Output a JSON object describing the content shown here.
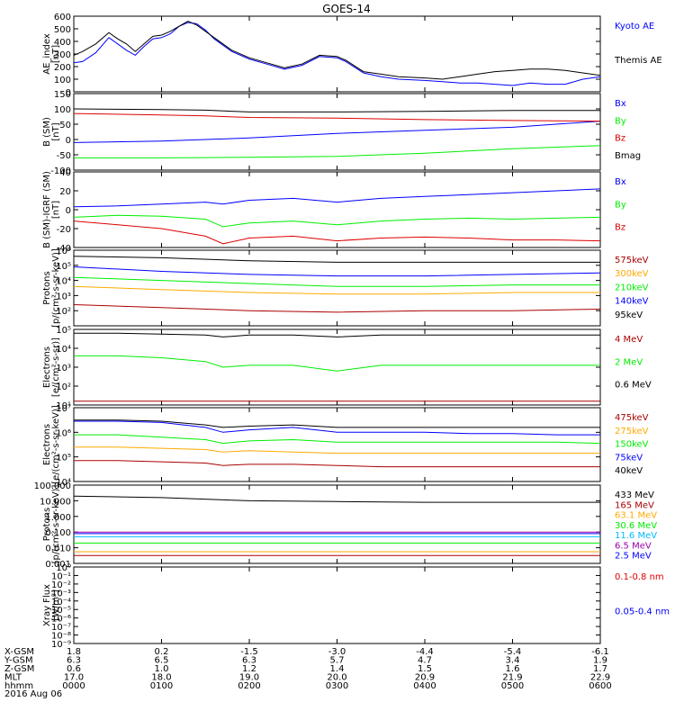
{
  "title": "GOES-14",
  "colors": {
    "black": "#000000",
    "blue": "#0000ff",
    "red": "#dd0000",
    "green": "#00ee00",
    "orange": "#ffaa00",
    "darkred": "#aa0000",
    "cyan": "#00bbff",
    "yellow": "#e8e800",
    "purple": "#9900aa"
  },
  "chart_data": [
    {
      "type": "line",
      "ylabel": "AE_index\n[nT]",
      "ylim": [
        0,
        600
      ],
      "yticks": [
        "0",
        "100",
        "200",
        "300",
        "400",
        "500",
        "600"
      ],
      "tickvals": [
        0,
        100,
        200,
        300,
        400,
        500,
        600
      ],
      "x_hours": [
        0.0,
        0.1,
        0.25,
        0.4,
        0.5,
        0.6,
        0.7,
        0.8,
        0.9,
        1.0,
        1.1,
        1.2,
        1.3,
        1.4,
        1.5,
        1.6,
        1.8,
        2.0,
        2.2,
        2.4,
        2.6,
        2.8,
        3.0,
        3.1,
        3.3,
        3.5,
        3.7,
        4.0,
        4.2,
        4.4,
        4.6,
        4.8,
        5.0,
        5.2,
        5.4,
        5.6,
        5.8,
        6.0
      ],
      "series": [
        {
          "name": "Kyoto AE",
          "color": "blue",
          "values": [
            230,
            240,
            310,
            430,
            380,
            330,
            290,
            360,
            420,
            430,
            460,
            520,
            550,
            540,
            490,
            420,
            320,
            260,
            220,
            180,
            210,
            280,
            270,
            240,
            150,
            120,
            100,
            90,
            80,
            70,
            70,
            60,
            50,
            70,
            60,
            60,
            100,
            120
          ]
        },
        {
          "name": "Themis AE",
          "color": "black",
          "values": [
            290,
            320,
            380,
            470,
            420,
            380,
            320,
            380,
            440,
            450,
            480,
            520,
            560,
            530,
            480,
            430,
            330,
            270,
            230,
            190,
            220,
            290,
            280,
            250,
            160,
            140,
            120,
            110,
            100,
            120,
            140,
            160,
            170,
            180,
            180,
            170,
            150,
            130
          ]
        }
      ]
    },
    {
      "type": "line",
      "ylabel": "B (SM)\n[nT]",
      "ylim": [
        -100,
        150
      ],
      "yticks": [
        "-100",
        "-50",
        "0",
        "50",
        "100",
        "150"
      ],
      "tickvals": [
        -100,
        -50,
        0,
        50,
        100,
        150
      ],
      "x_hours": [
        0,
        1,
        1.5,
        2,
        3,
        4,
        5,
        6
      ],
      "series": [
        {
          "name": "Bx",
          "color": "blue",
          "values": [
            -10,
            -5,
            0,
            5,
            20,
            30,
            40,
            60
          ]
        },
        {
          "name": "By",
          "color": "green",
          "values": [
            -60,
            -60,
            -59,
            -58,
            -55,
            -45,
            -30,
            -20
          ]
        },
        {
          "name": "Bz",
          "color": "red",
          "values": [
            85,
            80,
            77,
            72,
            70,
            65,
            62,
            60
          ]
        },
        {
          "name": "Bmag",
          "color": "black",
          "values": [
            100,
            98,
            96,
            90,
            90,
            92,
            95,
            95
          ]
        }
      ]
    },
    {
      "type": "line",
      "ylabel": "B (SM)-IGRF (SM)\n[nT]",
      "ylim": [
        -40,
        40
      ],
      "yticks": [
        "-40",
        "-20",
        "0",
        "20",
        "40"
      ],
      "tickvals": [
        -40,
        -20,
        0,
        20,
        40
      ],
      "x_hours": [
        0,
        0.5,
        1,
        1.5,
        1.7,
        2,
        2.5,
        3,
        3.5,
        4,
        4.5,
        5,
        5.5,
        6
      ],
      "series": [
        {
          "name": "Bx",
          "color": "blue",
          "values": [
            3,
            4,
            6,
            8,
            6,
            10,
            12,
            8,
            12,
            14,
            16,
            18,
            20,
            22
          ]
        },
        {
          "name": "By",
          "color": "green",
          "values": [
            -8,
            -6,
            -7,
            -10,
            -18,
            -14,
            -12,
            -16,
            -12,
            -10,
            -9,
            -10,
            -9,
            -8
          ]
        },
        {
          "name": "Bz",
          "color": "red",
          "values": [
            -12,
            -16,
            -20,
            -28,
            -36,
            -30,
            -28,
            -33,
            -30,
            -29,
            -30,
            -32,
            -32,
            -33
          ]
        }
      ]
    },
    {
      "type": "line",
      "ylabel": "Protons\n[p/(cm²-s-sr-keV)]",
      "yscale": "log",
      "ylim": [
        1,
        6
      ],
      "yticks": [
        "10²",
        "10³",
        "10⁴",
        "10⁵",
        "10⁶"
      ],
      "tickvals": [
        2,
        3,
        4,
        5,
        6
      ],
      "x_hours": [
        0,
        1,
        2,
        3,
        4,
        5,
        6
      ],
      "series": [
        {
          "name": "575keV",
          "color": "darkred",
          "values": [
            2.4,
            2.2,
            2.0,
            1.9,
            2.0,
            2.0,
            2.1
          ]
        },
        {
          "name": "300keV",
          "color": "orange",
          "values": [
            3.6,
            3.4,
            3.2,
            3.1,
            3.1,
            3.2,
            3.2
          ]
        },
        {
          "name": "210keV",
          "color": "green",
          "values": [
            4.2,
            4.0,
            3.8,
            3.6,
            3.6,
            3.7,
            3.7
          ]
        },
        {
          "name": "140keV",
          "color": "blue",
          "values": [
            4.9,
            4.6,
            4.4,
            4.3,
            4.3,
            4.4,
            4.5
          ]
        },
        {
          "name": "95keV",
          "color": "black",
          "values": [
            5.6,
            5.5,
            5.3,
            5.2,
            5.2,
            5.2,
            5.2
          ]
        }
      ]
    },
    {
      "type": "line",
      "ylabel": "Electrons\n[e/(cm²-s-sr)]",
      "yscale": "log",
      "ylim": [
        1,
        5
      ],
      "yticks": [
        "10¹",
        "10²",
        "10³",
        "10⁴",
        "10⁵"
      ],
      "tickvals": [
        1,
        2,
        3,
        4,
        5
      ],
      "x_hours": [
        0,
        0.5,
        1,
        1.5,
        1.7,
        2,
        2.5,
        3,
        3.5,
        4,
        4.5,
        5,
        5.5,
        6
      ],
      "series": [
        {
          "name": "4 MeV",
          "color": "darkred",
          "values": [
            1.2,
            1.2,
            1.2,
            1.2,
            1.2,
            1.2,
            1.2,
            1.2,
            1.2,
            1.2,
            1.2,
            1.2,
            1.2,
            1.2
          ]
        },
        {
          "name": "2 MeV",
          "color": "green",
          "values": [
            3.6,
            3.6,
            3.5,
            3.3,
            3.0,
            3.1,
            3.1,
            2.8,
            3.1,
            3.1,
            3.1,
            3.1,
            3.1,
            3.1
          ]
        },
        {
          "name": "0.6 MeV",
          "color": "black",
          "values": [
            4.8,
            4.8,
            4.75,
            4.7,
            4.6,
            4.7,
            4.7,
            4.6,
            4.7,
            4.7,
            4.7,
            4.7,
            4.7,
            4.7
          ]
        }
      ]
    },
    {
      "type": "line",
      "ylabel": "Electrons\n[e/(cm²-s-sr-keV)]",
      "yscale": "log",
      "ylim": [
        4,
        7
      ],
      "yticks": [
        "10⁴",
        "10⁵",
        "10⁶",
        "10⁷"
      ],
      "tickvals": [
        4,
        5,
        6,
        7
      ],
      "x_hours": [
        0,
        0.5,
        1,
        1.5,
        1.7,
        2,
        2.5,
        3,
        3.5,
        4,
        4.5,
        5,
        5.5,
        6
      ],
      "series": [
        {
          "name": "475keV",
          "color": "darkred",
          "values": [
            4.85,
            4.85,
            4.8,
            4.75,
            4.65,
            4.7,
            4.7,
            4.65,
            4.6,
            4.6,
            4.6,
            4.6,
            4.6,
            4.6
          ]
        },
        {
          "name": "275keV",
          "color": "orange",
          "values": [
            5.4,
            5.4,
            5.35,
            5.3,
            5.2,
            5.25,
            5.2,
            5.15,
            5.15,
            5.15,
            5.15,
            5.15,
            5.15,
            5.15
          ]
        },
        {
          "name": "150keV",
          "color": "green",
          "values": [
            5.9,
            5.9,
            5.8,
            5.7,
            5.55,
            5.65,
            5.7,
            5.6,
            5.6,
            5.6,
            5.6,
            5.6,
            5.6,
            5.55
          ]
        },
        {
          "name": "75keV",
          "color": "blue",
          "values": [
            6.45,
            6.45,
            6.4,
            6.2,
            6.0,
            6.1,
            6.2,
            6.0,
            6.0,
            6.0,
            5.95,
            5.95,
            5.9,
            5.9
          ]
        },
        {
          "name": "40keV",
          "color": "black",
          "values": [
            6.5,
            6.5,
            6.45,
            6.3,
            6.2,
            6.25,
            6.3,
            6.2,
            6.2,
            6.2,
            6.2,
            6.2,
            6.2,
            6.2
          ]
        }
      ]
    },
    {
      "type": "line",
      "ylabel": "Protons\n[p/(cm²-s-sr-keV)]",
      "yscale": "log",
      "ylim": [
        -3,
        2
      ],
      "yticks": [
        "0.001",
        "0.010",
        "0.100",
        "1.000",
        "10.000",
        "100.000"
      ],
      "tickvals": [
        -3,
        -2,
        -1,
        0,
        1,
        2
      ],
      "x_hours": [
        0,
        1,
        2,
        3,
        4,
        5,
        6
      ],
      "series": [
        {
          "name": "433 MeV",
          "color": "black",
          "values": [
            1.3,
            1.2,
            1.0,
            0.95,
            0.9,
            0.9,
            0.9
          ]
        },
        {
          "name": "165 MeV",
          "color": "darkred",
          "values": [
            -2.5,
            -2.5,
            -2.5,
            -2.5,
            -2.5,
            -2.5,
            -2.5
          ]
        },
        {
          "name": "63.1 MeV",
          "color": "orange",
          "values": [
            -2.25,
            -2.25,
            -2.25,
            -2.25,
            -2.25,
            -2.25,
            -2.25
          ]
        },
        {
          "name": "30.6 MeV",
          "color": "green",
          "values": [
            -1.7,
            -1.7,
            -1.7,
            -1.7,
            -1.7,
            -1.7,
            -1.7
          ]
        },
        {
          "name": "11.6 MeV",
          "color": "cyan",
          "values": [
            -1.3,
            -1.3,
            -1.3,
            -1.3,
            -1.3,
            -1.3,
            -1.3
          ]
        },
        {
          "name": "6.5 MeV",
          "color": "purple",
          "values": [
            -1.0,
            -1.0,
            -1.0,
            -1.0,
            -1.0,
            -1.0,
            -1.0
          ]
        },
        {
          "name": "2.5 MeV",
          "color": "blue",
          "values": [
            -1.1,
            -1.1,
            -1.1,
            -1.1,
            -1.1,
            -1.1,
            -1.1
          ]
        }
      ]
    },
    {
      "type": "line",
      "ylabel": "Xray Flux\n[W/m²]",
      "yscale": "log",
      "ylim": [
        -9,
        0
      ],
      "yticks": [
        "10⁻⁹",
        "10⁻⁸",
        "10⁻⁷",
        "10⁻⁶",
        "10⁻⁵",
        "10⁻⁴",
        "10⁻³",
        "10⁻²",
        "10⁻¹",
        "10⁰"
      ],
      "tickvals": [
        -9,
        -8,
        -7,
        -6,
        -5,
        -4,
        -3,
        -2,
        -1,
        0
      ],
      "x_hours": [],
      "series": [
        {
          "name": "0.1-0.8 nm",
          "color": "red",
          "values": []
        },
        {
          "name": "0.05-0.4 nm",
          "color": "blue",
          "values": []
        }
      ]
    }
  ],
  "x_axis": {
    "rows": [
      {
        "label": "X-GSM",
        "values": [
          "1.8",
          "0.2",
          "-1.5",
          "-3.0",
          "-4.4",
          "-5.4",
          "-6.1"
        ]
      },
      {
        "label": "Y-GSM",
        "values": [
          "6.3",
          "6.5",
          "6.3",
          "5.7",
          "4.7",
          "3.4",
          "1.9"
        ]
      },
      {
        "label": "Z-GSM",
        "values": [
          "0.6",
          "1.0",
          "1.2",
          "1.4",
          "1.5",
          "1.6",
          "1.7"
        ]
      },
      {
        "label": "MLT",
        "values": [
          "17.0",
          "18.0",
          "19.0",
          "20.0",
          "20.9",
          "21.9",
          "22.9"
        ]
      },
      {
        "label": "hhmm",
        "values": [
          "0000",
          "0100",
          "0200",
          "0300",
          "0400",
          "0500",
          "0600"
        ]
      }
    ],
    "date": "2016 Aug 06"
  }
}
